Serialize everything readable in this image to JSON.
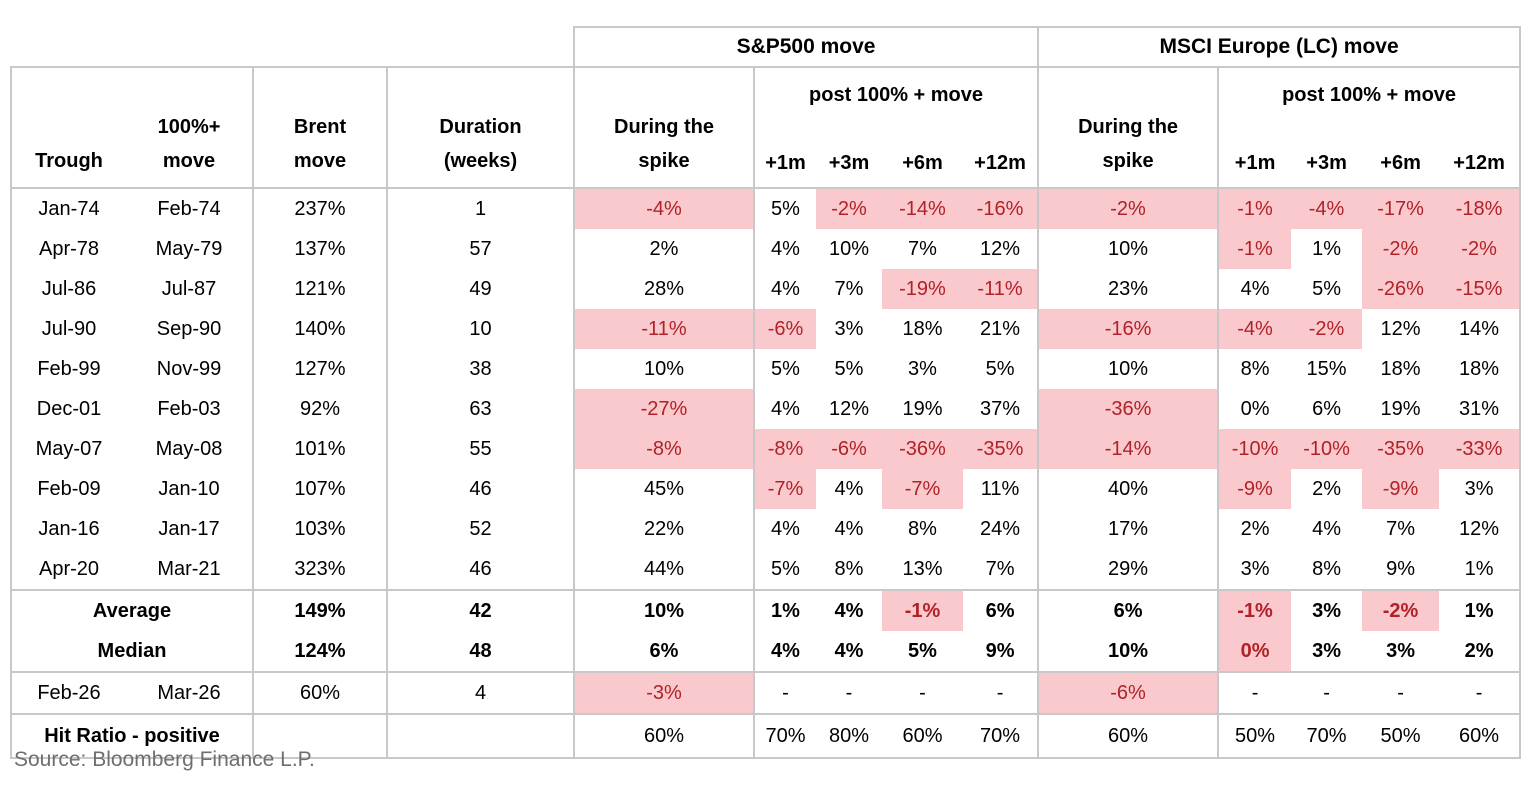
{
  "groups": {
    "sp500": "S&P500 move",
    "msci": "MSCI Europe (LC) move"
  },
  "columns": {
    "trough": "Trough",
    "pct_move": [
      "100%+",
      "move"
    ],
    "brent": [
      "Brent",
      "move"
    ],
    "duration": [
      "Duration",
      "(weeks)"
    ],
    "during": [
      "During the",
      "spike"
    ],
    "post": "post 100% + move",
    "horizons": [
      "+1m",
      "+3m",
      "+6m",
      "+12m"
    ]
  },
  "chart_data": {
    "type": "table",
    "columns": [
      "Trough",
      "100%+ move",
      "Brent move",
      "Duration (weeks)",
      "During the spike (S&P500)",
      "+1m (S&P500)",
      "+3m (S&P500)",
      "+6m (S&P500)",
      "+12m (S&P500)",
      "During the spike (MSCI Europe LC)",
      "+1m (MSCI)",
      "+3m (MSCI)",
      "+6m (MSCI)",
      "+12m (MSCI)"
    ],
    "rows": [
      {
        "cls": "",
        "cells": [
          {
            "t": "Jan-74"
          },
          {
            "t": "Feb-74"
          },
          {
            "t": "237%"
          },
          {
            "t": "1"
          },
          {
            "t": "-4%",
            "hl": true
          },
          {
            "t": "5%"
          },
          {
            "t": "-2%",
            "hl": true
          },
          {
            "t": "-14%",
            "hl": true
          },
          {
            "t": "-16%",
            "hl": true
          },
          {
            "t": "-2%",
            "hl": true
          },
          {
            "t": "-1%",
            "hl": true
          },
          {
            "t": "-4%",
            "hl": true
          },
          {
            "t": "-17%",
            "hl": true
          },
          {
            "t": "-18%",
            "hl": true
          }
        ]
      },
      {
        "cls": "",
        "cells": [
          {
            "t": "Apr-78"
          },
          {
            "t": "May-79"
          },
          {
            "t": "137%"
          },
          {
            "t": "57"
          },
          {
            "t": "2%"
          },
          {
            "t": "4%"
          },
          {
            "t": "10%"
          },
          {
            "t": "7%"
          },
          {
            "t": "12%"
          },
          {
            "t": "10%"
          },
          {
            "t": "-1%",
            "hl": true
          },
          {
            "t": "1%"
          },
          {
            "t": "-2%",
            "hl": true
          },
          {
            "t": "-2%",
            "hl": true
          }
        ]
      },
      {
        "cls": "",
        "cells": [
          {
            "t": "Jul-86"
          },
          {
            "t": "Jul-87"
          },
          {
            "t": "121%"
          },
          {
            "t": "49"
          },
          {
            "t": "28%"
          },
          {
            "t": "4%"
          },
          {
            "t": "7%"
          },
          {
            "t": "-19%",
            "hl": true
          },
          {
            "t": "-11%",
            "hl": true
          },
          {
            "t": "23%"
          },
          {
            "t": "4%"
          },
          {
            "t": "5%"
          },
          {
            "t": "-26%",
            "hl": true
          },
          {
            "t": "-15%",
            "hl": true
          }
        ]
      },
      {
        "cls": "",
        "cells": [
          {
            "t": "Jul-90"
          },
          {
            "t": "Sep-90"
          },
          {
            "t": "140%"
          },
          {
            "t": "10"
          },
          {
            "t": "-11%",
            "hl": true
          },
          {
            "t": "-6%",
            "hl": true
          },
          {
            "t": "3%"
          },
          {
            "t": "18%"
          },
          {
            "t": "21%"
          },
          {
            "t": "-16%",
            "hl": true
          },
          {
            "t": "-4%",
            "hl": true
          },
          {
            "t": "-2%",
            "hl": true
          },
          {
            "t": "12%"
          },
          {
            "t": "14%"
          }
        ]
      },
      {
        "cls": "",
        "cells": [
          {
            "t": "Feb-99"
          },
          {
            "t": "Nov-99"
          },
          {
            "t": "127%"
          },
          {
            "t": "38"
          },
          {
            "t": "10%"
          },
          {
            "t": "5%"
          },
          {
            "t": "5%"
          },
          {
            "t": "3%"
          },
          {
            "t": "5%"
          },
          {
            "t": "10%"
          },
          {
            "t": "8%"
          },
          {
            "t": "15%"
          },
          {
            "t": "18%"
          },
          {
            "t": "18%"
          }
        ]
      },
      {
        "cls": "",
        "cells": [
          {
            "t": "Dec-01"
          },
          {
            "t": "Feb-03"
          },
          {
            "t": "92%"
          },
          {
            "t": "63"
          },
          {
            "t": "-27%",
            "hl": true
          },
          {
            "t": "4%"
          },
          {
            "t": "12%"
          },
          {
            "t": "19%"
          },
          {
            "t": "37%"
          },
          {
            "t": "-36%",
            "hl": true
          },
          {
            "t": "0%"
          },
          {
            "t": "6%"
          },
          {
            "t": "19%"
          },
          {
            "t": "31%"
          }
        ]
      },
      {
        "cls": "",
        "cells": [
          {
            "t": "May-07"
          },
          {
            "t": "May-08"
          },
          {
            "t": "101%"
          },
          {
            "t": "55"
          },
          {
            "t": "-8%",
            "hl": true
          },
          {
            "t": "-8%",
            "hl": true
          },
          {
            "t": "-6%",
            "hl": true
          },
          {
            "t": "-36%",
            "hl": true
          },
          {
            "t": "-35%",
            "hl": true
          },
          {
            "t": "-14%",
            "hl": true
          },
          {
            "t": "-10%",
            "hl": true
          },
          {
            "t": "-10%",
            "hl": true
          },
          {
            "t": "-35%",
            "hl": true
          },
          {
            "t": "-33%",
            "hl": true
          }
        ]
      },
      {
        "cls": "",
        "cells": [
          {
            "t": "Feb-09"
          },
          {
            "t": "Jan-10"
          },
          {
            "t": "107%"
          },
          {
            "t": "46"
          },
          {
            "t": "45%"
          },
          {
            "t": "-7%",
            "hl": true
          },
          {
            "t": "4%"
          },
          {
            "t": "-7%",
            "hl": true
          },
          {
            "t": "11%"
          },
          {
            "t": "40%"
          },
          {
            "t": "-9%",
            "hl": true
          },
          {
            "t": "2%"
          },
          {
            "t": "-9%",
            "hl": true
          },
          {
            "t": "3%"
          }
        ]
      },
      {
        "cls": "",
        "cells": [
          {
            "t": "Jan-16"
          },
          {
            "t": "Jan-17"
          },
          {
            "t": "103%"
          },
          {
            "t": "52"
          },
          {
            "t": "22%"
          },
          {
            "t": "4%"
          },
          {
            "t": "4%"
          },
          {
            "t": "8%"
          },
          {
            "t": "24%"
          },
          {
            "t": "17%"
          },
          {
            "t": "2%"
          },
          {
            "t": "4%"
          },
          {
            "t": "7%"
          },
          {
            "t": "12%"
          }
        ]
      },
      {
        "cls": "",
        "cells": [
          {
            "t": "Apr-20"
          },
          {
            "t": "Mar-21"
          },
          {
            "t": "323%"
          },
          {
            "t": "46"
          },
          {
            "t": "44%"
          },
          {
            "t": "5%"
          },
          {
            "t": "8%"
          },
          {
            "t": "13%"
          },
          {
            "t": "7%"
          },
          {
            "t": "29%"
          },
          {
            "t": "3%"
          },
          {
            "t": "8%"
          },
          {
            "t": "9%"
          },
          {
            "t": "1%"
          }
        ]
      },
      {
        "cls": "bt bold",
        "cells": [
          {
            "t": "Average",
            "cs": 2
          },
          {
            "t": "149%"
          },
          {
            "t": "42"
          },
          {
            "t": "10%"
          },
          {
            "t": "1%"
          },
          {
            "t": "4%"
          },
          {
            "t": "-1%",
            "hl": true
          },
          {
            "t": "6%"
          },
          {
            "t": "6%"
          },
          {
            "t": "-1%",
            "hl": true
          },
          {
            "t": "3%"
          },
          {
            "t": "-2%",
            "hl": true
          },
          {
            "t": "1%"
          }
        ]
      },
      {
        "cls": "bold",
        "cells": [
          {
            "t": "Median",
            "cs": 2
          },
          {
            "t": "124%"
          },
          {
            "t": "48"
          },
          {
            "t": "6%"
          },
          {
            "t": "4%"
          },
          {
            "t": "4%"
          },
          {
            "t": "5%"
          },
          {
            "t": "9%"
          },
          {
            "t": "10%"
          },
          {
            "t": "0%",
            "hl": true
          },
          {
            "t": "3%"
          },
          {
            "t": "3%"
          },
          {
            "t": "2%"
          }
        ]
      },
      {
        "cls": "bt",
        "cells": [
          {
            "t": "Feb-26"
          },
          {
            "t": "Mar-26"
          },
          {
            "t": "60%"
          },
          {
            "t": "4"
          },
          {
            "t": "-3%",
            "hl": true
          },
          {
            "t": "-"
          },
          {
            "t": "-"
          },
          {
            "t": "-"
          },
          {
            "t": "-"
          },
          {
            "t": "-6%",
            "hl": true
          },
          {
            "t": "-"
          },
          {
            "t": "-"
          },
          {
            "t": "-"
          },
          {
            "t": "-"
          }
        ]
      },
      {
        "cls": "bt bb hit",
        "cells": [
          {
            "t": "Hit Ratio - positive",
            "cs": 2,
            "b": true
          },
          {
            "t": ""
          },
          {
            "t": ""
          },
          {
            "t": "60%"
          },
          {
            "t": "70%"
          },
          {
            "t": "80%"
          },
          {
            "t": "60%"
          },
          {
            "t": "70%"
          },
          {
            "t": "60%"
          },
          {
            "t": "50%"
          },
          {
            "t": "70%"
          },
          {
            "t": "50%"
          },
          {
            "t": "60%"
          }
        ]
      }
    ]
  },
  "colors": {
    "highlight_bg": "#f9c9cd",
    "highlight_text": "#b02227",
    "border": "#c8c8c8",
    "source_text": "#6e6e6e"
  },
  "source": "Source: Bloomberg Finance L.P."
}
